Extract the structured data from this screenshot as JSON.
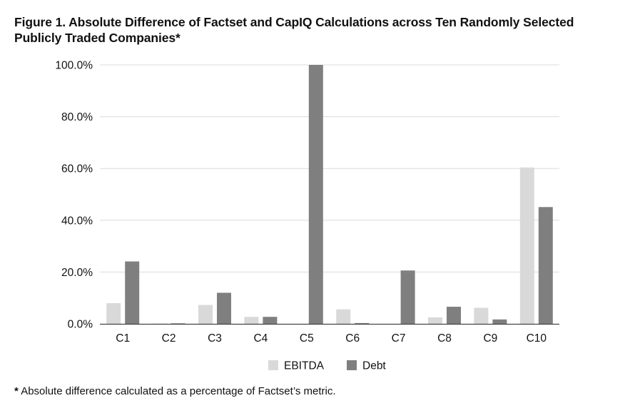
{
  "page": {
    "title": "Figure 1.  Absolute Difference of Factset and CapIQ Calculations across Ten Randomly Selected Publicly Traded Companies*",
    "footnote_mark": "*",
    "footnote_text": "Absolute difference calculated as a percentage of Factset’s metric."
  },
  "chart_data": {
    "type": "bar",
    "title": "Figure 1.  Absolute Difference of Factset and CapIQ Calculations across Ten Randomly Selected Publicly Traded Companies*",
    "xlabel": "",
    "ylabel": "",
    "categories": [
      "C1",
      "C2",
      "C3",
      "C4",
      "C5",
      "C6",
      "C7",
      "C8",
      "C9",
      "C10"
    ],
    "series": [
      {
        "name": "EBITDA",
        "color": "#d9d9d9",
        "values": [
          8.0,
          0.1,
          7.3,
          2.7,
          0.0,
          5.6,
          0.0,
          2.5,
          6.2,
          60.4
        ]
      },
      {
        "name": "Debt",
        "color": "#7f7f7f",
        "values": [
          24.1,
          0.2,
          12.0,
          2.7,
          100.0,
          0.3,
          20.6,
          6.6,
          1.7,
          45.1
        ]
      }
    ],
    "ylim": [
      0,
      100
    ],
    "yticks": [
      0,
      20,
      40,
      60,
      80,
      100
    ],
    "ytick_labels": [
      "0.0%",
      "20.0%",
      "40.0%",
      "60.0%",
      "80.0%",
      "100.0%"
    ],
    "grid": true,
    "legend_position": "bottom-center"
  }
}
